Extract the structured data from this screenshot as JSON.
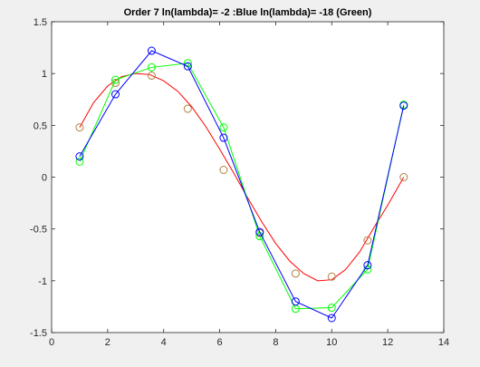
{
  "chart_data": {
    "type": "line",
    "title": "Order 7 ln(lambda)= -2 :Blue  ln(lambda)= -18 (Green)",
    "xlabel": "",
    "ylabel": "",
    "xlim": [
      0,
      14
    ],
    "ylim": [
      -1.5,
      1.5
    ],
    "x_ticks": [
      0,
      2,
      4,
      6,
      8,
      10,
      12,
      14
    ],
    "y_ticks": [
      -1.5,
      -1,
      -0.5,
      0,
      0.5,
      1,
      1.5
    ],
    "x_tick_labels": [
      "0",
      "2",
      "4",
      "6",
      "8",
      "10",
      "12",
      "14"
    ],
    "y_tick_labels": [
      "-1.5",
      "-1",
      "-0.5",
      "0",
      "0.5",
      "1",
      "1.5"
    ],
    "grid": false,
    "legend": "none",
    "series": [
      {
        "color": "#ff0000",
        "style": "curve",
        "x": [
          1.0,
          1.5,
          2.0,
          2.5,
          3.0,
          3.5,
          4.0,
          4.5,
          5.0,
          5.5,
          6.0,
          6.5,
          7.0,
          7.5,
          8.0,
          8.5,
          9.0,
          9.5,
          10.0,
          10.5,
          11.0,
          11.5,
          12.0,
          12.57
        ],
        "values": [
          0.48,
          0.72,
          0.88,
          0.97,
          1.0,
          0.99,
          0.93,
          0.83,
          0.68,
          0.49,
          0.27,
          0.04,
          -0.2,
          -0.43,
          -0.64,
          -0.81,
          -0.93,
          -1.0,
          -0.99,
          -0.89,
          -0.72,
          -0.49,
          -0.27,
          0.0
        ]
      },
      {
        "color": "#b08040",
        "style": "markers",
        "x": [
          1.0,
          2.28,
          3.57,
          4.86,
          6.14,
          7.43,
          8.71,
          10.0,
          11.28,
          12.57
        ],
        "values": [
          0.48,
          0.91,
          0.98,
          0.66,
          0.07,
          -0.54,
          -0.93,
          -0.96,
          -0.61,
          0.0
        ]
      },
      {
        "color": "#00ff00",
        "style": "line-markers",
        "x": [
          1.0,
          2.28,
          3.57,
          4.86,
          6.14,
          7.43,
          8.71,
          10.0,
          11.28,
          12.57
        ],
        "values": [
          0.15,
          0.94,
          1.06,
          1.1,
          0.48,
          -0.57,
          -1.27,
          -1.26,
          -0.89,
          0.7
        ]
      },
      {
        "color": "#0000ff",
        "style": "line-markers",
        "x": [
          1.0,
          2.28,
          3.57,
          4.86,
          6.14,
          7.43,
          8.71,
          10.0,
          11.28,
          12.57
        ],
        "values": [
          0.2,
          0.8,
          1.22,
          1.07,
          0.38,
          -0.53,
          -1.2,
          -1.36,
          -0.85,
          0.69
        ]
      }
    ]
  }
}
